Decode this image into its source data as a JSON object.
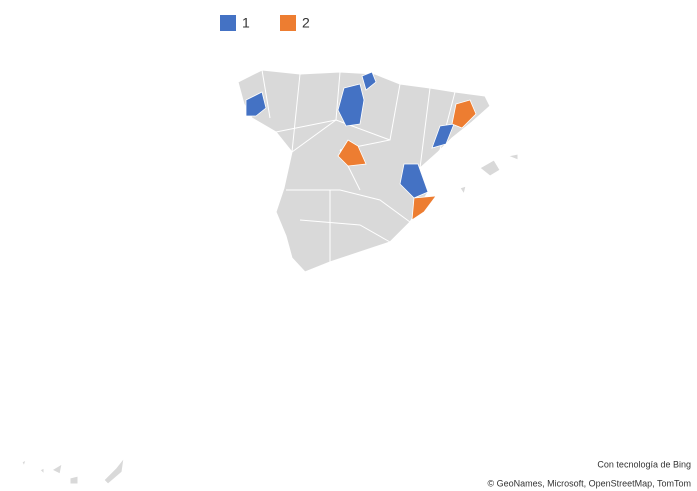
{
  "chart_data": {
    "type": "map",
    "series": [
      {
        "name": "1",
        "color": "#4472c4"
      },
      {
        "name": "2",
        "color": "#ed7d31"
      }
    ],
    "attribution": [
      "Con tecnología de Bing",
      "© GeoNames, Microsoft, OpenStreetMap, TomTom"
    ]
  }
}
